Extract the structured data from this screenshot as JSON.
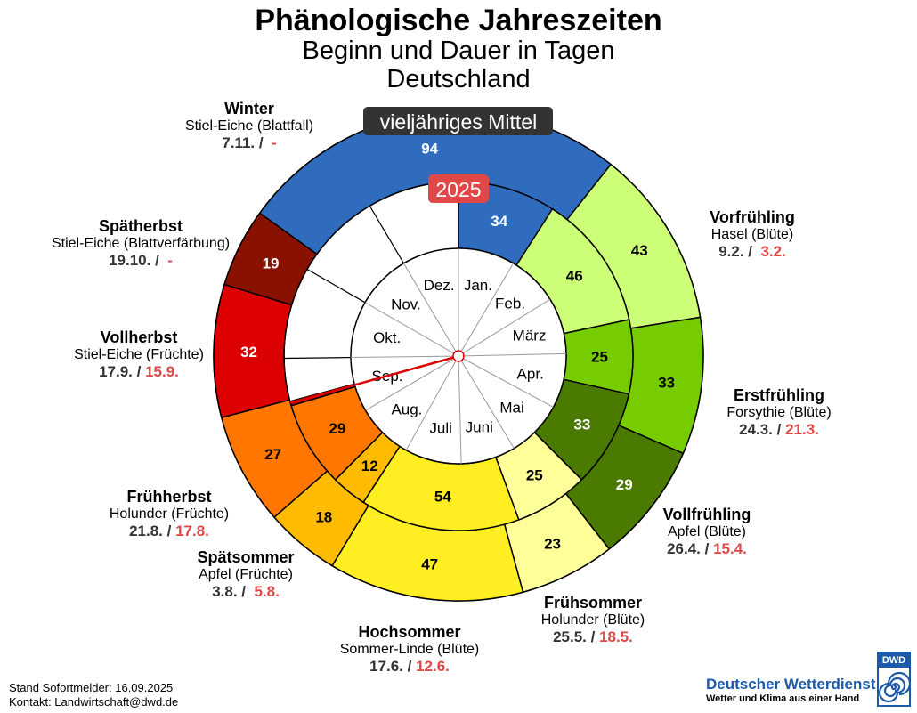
{
  "title": "Phänologische Jahreszeiten",
  "subtitle1": "Beginn und Dauer in Tagen",
  "subtitle2": "Deutschland",
  "ring_label_outer": "vieljähriges Mittel",
  "ring_label_inner": "2025",
  "months": [
    "Jan.",
    "Feb.",
    "März",
    "Apr.",
    "Mai",
    "Juni",
    "Juli",
    "Aug.",
    "Sep.",
    "Okt.",
    "Nov.",
    "Dez."
  ],
  "labels": {
    "winter": {
      "name": "Winter",
      "plant": "Stiel-Eiche (Blattfall)",
      "d1": "7.11. /",
      "d2": "-"
    },
    "spaetherbst": {
      "name": "Spätherbst",
      "plant": "Stiel-Eiche (Blattverfärbung)",
      "d1": "19.10. /",
      "d2": "-"
    },
    "vollherbst": {
      "name": "Vollherbst",
      "plant": "Stiel-Eiche (Früchte)",
      "d1": "17.9. /",
      "d2": "15.9."
    },
    "fruehherbst": {
      "name": "Frühherbst",
      "plant": "Holunder (Früchte)",
      "d1": "21.8. /",
      "d2": "17.8."
    },
    "spaetsommer": {
      "name": "Spätsommer",
      "plant": "Apfel (Früchte)",
      "d1": "3.8. /",
      "d2": "5.8."
    },
    "hochsommer": {
      "name": "Hochsommer",
      "plant": "Sommer-Linde (Blüte)",
      "d1": "17.6. /",
      "d2": "12.6."
    },
    "fruehsommer": {
      "name": "Frühsommer",
      "plant": "Holunder (Blüte)",
      "d1": "25.5. /",
      "d2": "18.5."
    },
    "vollfruehling": {
      "name": "Vollfrühling",
      "plant": "Apfel (Blüte)",
      "d1": "26.4. /",
      "d2": "15.4."
    },
    "erstfruehling": {
      "name": "Erstfrühling",
      "plant": "Forsythie (Blüte)",
      "d1": "24.3. /",
      "d2": "21.3."
    },
    "vorfruehling": {
      "name": "Vorfrühling",
      "plant": "Hasel (Blüte)",
      "d1": "9.2. /",
      "d2": "3.2."
    }
  },
  "footer": {
    "stand": "Stand Sofortmelder: 16.09.2025",
    "kontakt": "Kontakt: Landwirtschaft@dwd.de"
  },
  "logo": {
    "name": "Deutscher Wetterdienst",
    "slogan": "Wetter und Klima aus einer Hand",
    "badge": "DWD"
  },
  "chart_data": {
    "type": "pie",
    "title": "Phänologische Jahreszeiten",
    "rings": [
      {
        "name": "vieljähriges Mittel",
        "segments": [
          {
            "season": "Vorfrühling",
            "start": "9.2.",
            "days": 43,
            "color": "#ccff77"
          },
          {
            "season": "Erstfrühling",
            "start": "24.3.",
            "days": 33,
            "color": "#77cc00"
          },
          {
            "season": "Vollfrühling",
            "start": "26.4.",
            "days": 29,
            "color": "#4a7a00"
          },
          {
            "season": "Frühsommer",
            "start": "25.5.",
            "days": 23,
            "color": "#ffff99"
          },
          {
            "season": "Hochsommer",
            "start": "17.6.",
            "days": 47,
            "color": "#ffee22"
          },
          {
            "season": "Spätsommer",
            "start": "3.8.",
            "days": 18,
            "color": "#ffbb00"
          },
          {
            "season": "Frühherbst",
            "start": "21.8.",
            "days": 27,
            "color": "#ff7700"
          },
          {
            "season": "Vollherbst",
            "start": "17.9.",
            "days": 32,
            "color": "#dd0000"
          },
          {
            "season": "Spätherbst",
            "start": "19.10.",
            "days": 19,
            "color": "#881100"
          },
          {
            "season": "Winter",
            "start": "7.11.",
            "days": 94,
            "color": "#2f6cbd"
          }
        ]
      },
      {
        "name": "2025",
        "segments": [
          {
            "season": "Winter",
            "start": "1.1.",
            "days": 34,
            "color": "#2f6cbd"
          },
          {
            "season": "Vorfrühling",
            "start": "3.2.",
            "days": 46,
            "color": "#ccff77"
          },
          {
            "season": "Erstfrühling",
            "start": "21.3.",
            "days": 25,
            "color": "#77cc00"
          },
          {
            "season": "Vollfrühling",
            "start": "15.4.",
            "days": 33,
            "color": "#4a7a00"
          },
          {
            "season": "Frühsommer",
            "start": "18.5.",
            "days": 25,
            "color": "#ffff99"
          },
          {
            "season": "Hochsommer",
            "start": "12.6.",
            "days": 54,
            "color": "#ffee22"
          },
          {
            "season": "Spätsommer",
            "start": "5.8.",
            "days": 12,
            "color": "#ffbb00"
          },
          {
            "season": "Frühherbst",
            "start": "17.8.",
            "days": 29,
            "color": "#ff7700"
          },
          {
            "season": "Vollherbst",
            "start": "15.9.",
            "days": null,
            "color": "#dd0000"
          }
        ],
        "stand": "16.09.2025"
      }
    ]
  }
}
